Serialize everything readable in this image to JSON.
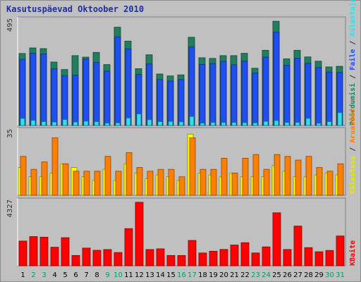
{
  "title": "Kasutuspäevad Oktoober 2010",
  "chart_data": [
    {
      "type": "bar",
      "panel": "top",
      "y_max_label": "495",
      "ylim": [
        0,
        495
      ],
      "legend": [
        "Pöördumisi",
        "Faile",
        "Külastajaid"
      ],
      "colors": [
        "#1f7f5f",
        "#1f4fef",
        "#2fdfef"
      ],
      "categories": [
        "1",
        "2",
        "3",
        "4",
        "5",
        "6",
        "7",
        "8",
        "9",
        "10",
        "11",
        "12",
        "13",
        "14",
        "15",
        "16",
        "17",
        "18",
        "19",
        "20",
        "21",
        "22",
        "23",
        "24",
        "25",
        "26",
        "27",
        "28",
        "29",
        "30",
        "31"
      ],
      "series": [
        {
          "name": "Pöördumisi",
          "values": [
            337,
            363,
            360,
            297,
            262,
            327,
            320,
            342,
            285,
            460,
            395,
            266,
            331,
            241,
            232,
            237,
            413,
            317,
            314,
            327,
            327,
            338,
            268,
            352,
            488,
            312,
            352,
            321,
            301,
            274,
            277
          ]
        },
        {
          "name": "Faile",
          "values": [
            310,
            338,
            335,
            265,
            233,
            235,
            311,
            295,
            254,
            415,
            359,
            239,
            288,
            215,
            208,
            215,
            368,
            286,
            290,
            300,
            284,
            301,
            245,
            320,
            437,
            282,
            315,
            291,
            271,
            250,
            248
          ]
        },
        {
          "name": "Külastajaid",
          "values": [
            33,
            24,
            18,
            16,
            28,
            16,
            20,
            18,
            11,
            12,
            35,
            54,
            27,
            18,
            19,
            17,
            42,
            11,
            14,
            14,
            14,
            13,
            12,
            19,
            23,
            14,
            14,
            33,
            10,
            18,
            60
          ]
        }
      ]
    },
    {
      "type": "bar",
      "panel": "middle",
      "y_max_label": "35",
      "ylim": [
        0,
        35
      ],
      "legend": [
        "Külastusi",
        "Aruanded"
      ],
      "colors": [
        "#ffff00",
        "#ff7f00"
      ],
      "categories": [
        "1",
        "2",
        "3",
        "4",
        "5",
        "6",
        "7",
        "8",
        "9",
        "10",
        "11",
        "12",
        "13",
        "14",
        "15",
        "16",
        "17",
        "18",
        "19",
        "20",
        "21",
        "22",
        "23",
        "24",
        "25",
        "26",
        "27",
        "28",
        "29",
        "30",
        "31"
      ],
      "series": [
        {
          "name": "Külastusi",
          "values": [
            15,
            10,
            10,
            12,
            17,
            15,
            10,
            8,
            14,
            8,
            17,
            12,
            9,
            11,
            10,
            8,
            33,
            12,
            11,
            10,
            12,
            10,
            10,
            10,
            16,
            13,
            10,
            10,
            11,
            12,
            11
          ]
        },
        {
          "name": "Aruanded",
          "values": [
            21,
            14,
            18,
            31,
            17,
            13,
            13,
            13,
            21,
            13,
            23,
            15,
            13,
            14,
            14,
            10,
            31,
            14,
            14,
            20,
            12,
            20,
            22,
            14,
            22,
            21,
            19,
            21,
            15,
            13,
            17
          ]
        }
      ]
    },
    {
      "type": "bar",
      "panel": "bottom",
      "y_max_label": "4327",
      "ylim": [
        0,
        4327
      ],
      "legend": [
        "KBaite"
      ],
      "colors": [
        "#ff0000"
      ],
      "categories": [
        "1",
        "2",
        "3",
        "4",
        "5",
        "6",
        "7",
        "8",
        "9",
        "10",
        "11",
        "12",
        "13",
        "14",
        "15",
        "16",
        "17",
        "18",
        "19",
        "20",
        "21",
        "22",
        "23",
        "24",
        "25",
        "26",
        "27",
        "28",
        "29",
        "30",
        "31"
      ],
      "series": [
        {
          "name": "KBaite",
          "values": [
            1650,
            1947,
            1910,
            1240,
            1875,
            688,
            1182,
            1034,
            1084,
            886,
            2481,
            4237,
            1085,
            1132,
            688,
            688,
            1691,
            854,
            972,
            1090,
            1386,
            1542,
            856,
            1262,
            3536,
            1085,
            2651,
            1212,
            937,
            1024,
            1989
          ]
        }
      ]
    }
  ],
  "x_axis": {
    "labels": [
      "1",
      "2",
      "3",
      "4",
      "5",
      "6",
      "7",
      "8",
      "9",
      "10",
      "11",
      "12",
      "13",
      "14",
      "15",
      "16",
      "17",
      "18",
      "19",
      "20",
      "21",
      "22",
      "23",
      "24",
      "25",
      "26",
      "27",
      "28",
      "29",
      "30",
      "31"
    ],
    "weekend_days": [
      "2",
      "3",
      "9",
      "10",
      "16",
      "17",
      "23",
      "24",
      "30",
      "31"
    ],
    "label_color": "#000000",
    "weekend_color": "#00a060"
  },
  "legend_text": {
    "top": [
      {
        "text": "Pöördumisi",
        "color": "#1f7f5f"
      },
      {
        "text": " / ",
        "color": "#303030"
      },
      {
        "text": "Faile",
        "color": "#1f4fef"
      },
      {
        "text": " / ",
        "color": "#303030"
      },
      {
        "text": "Külastajaid",
        "color": "#2fdfef"
      }
    ],
    "middle": [
      {
        "text": "Külastusi",
        "color": "#e8e800"
      },
      {
        "text": " / ",
        "color": "#303030"
      },
      {
        "text": "Aruanded",
        "color": "#ff7f00"
      }
    ],
    "bottom": [
      {
        "text": "KBaite",
        "color": "#ff0000"
      }
    ]
  }
}
